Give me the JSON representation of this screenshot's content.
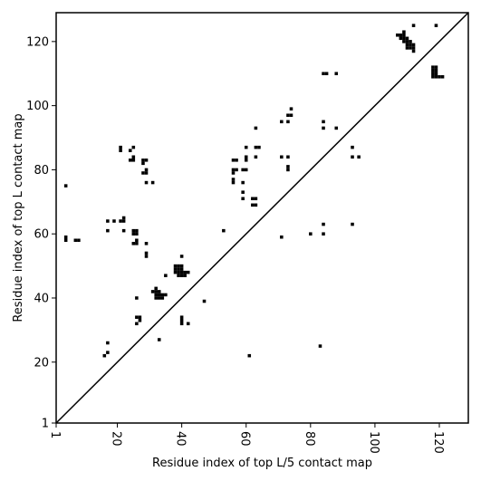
{
  "chart_data": {
    "type": "heatmap",
    "title": "",
    "xlabel": "Residue index of top L/5 contact map",
    "ylabel": "Residue index of top L contact map",
    "xlim": [
      1,
      129
    ],
    "ylim": [
      1,
      129
    ],
    "x_ticks": [
      1,
      20,
      40,
      60,
      80,
      100,
      120
    ],
    "y_ticks": [
      1,
      20,
      40,
      60,
      80,
      100,
      120
    ],
    "x_tick_rotation": -90,
    "diagonal": true,
    "colors": {
      "contact": "#000000",
      "background": "#ffffff",
      "frame": "#000000"
    },
    "upper_triangle_note": "L/5 contacts shown as filled cells",
    "points": [
      [
        4,
        75
      ],
      [
        4,
        58
      ],
      [
        4,
        59
      ],
      [
        7,
        58
      ],
      [
        8,
        58
      ],
      [
        16,
        22
      ],
      [
        17,
        23
      ],
      [
        17,
        26
      ],
      [
        17,
        61
      ],
      [
        17,
        64
      ],
      [
        19,
        64
      ],
      [
        21,
        64
      ],
      [
        21,
        86
      ],
      [
        21,
        87
      ],
      [
        22,
        61
      ],
      [
        22,
        64
      ],
      [
        22,
        65
      ],
      [
        24,
        83
      ],
      [
        24,
        86
      ],
      [
        25,
        83
      ],
      [
        25,
        84
      ],
      [
        25,
        87
      ],
      [
        25,
        57
      ],
      [
        25,
        60
      ],
      [
        25,
        61
      ],
      [
        26,
        57
      ],
      [
        26,
        58
      ],
      [
        26,
        60
      ],
      [
        26,
        61
      ],
      [
        26,
        40
      ],
      [
        26,
        32
      ],
      [
        26,
        34
      ],
      [
        27,
        33
      ],
      [
        27,
        34
      ],
      [
        28,
        79
      ],
      [
        28,
        82
      ],
      [
        28,
        83
      ],
      [
        29,
        79
      ],
      [
        29,
        80
      ],
      [
        29,
        83
      ],
      [
        29,
        76
      ],
      [
        29,
        57
      ],
      [
        29,
        53
      ],
      [
        29,
        54
      ],
      [
        31,
        76
      ],
      [
        31,
        42
      ],
      [
        32,
        41
      ],
      [
        32,
        42
      ],
      [
        32,
        43
      ],
      [
        32,
        40
      ],
      [
        33,
        40
      ],
      [
        33,
        41
      ],
      [
        33,
        42
      ],
      [
        33,
        27
      ],
      [
        34,
        40
      ],
      [
        34,
        41
      ],
      [
        35,
        41
      ],
      [
        35,
        47
      ],
      [
        38,
        48
      ],
      [
        38,
        49
      ],
      [
        38,
        50
      ],
      [
        39,
        47
      ],
      [
        39,
        48
      ],
      [
        39,
        49
      ],
      [
        39,
        50
      ],
      [
        40,
        47
      ],
      [
        40,
        48
      ],
      [
        40,
        49
      ],
      [
        40,
        50
      ],
      [
        40,
        53
      ],
      [
        40,
        32
      ],
      [
        40,
        33
      ],
      [
        40,
        34
      ],
      [
        41,
        47
      ],
      [
        41,
        48
      ],
      [
        42,
        48
      ],
      [
        42,
        32
      ],
      [
        47,
        39
      ],
      [
        53,
        61
      ],
      [
        56,
        76
      ],
      [
        56,
        77
      ],
      [
        56,
        79
      ],
      [
        56,
        80
      ],
      [
        56,
        83
      ],
      [
        57,
        80
      ],
      [
        57,
        83
      ],
      [
        59,
        73
      ],
      [
        59,
        71
      ],
      [
        59,
        76
      ],
      [
        59,
        80
      ],
      [
        60,
        80
      ],
      [
        60,
        83
      ],
      [
        60,
        84
      ],
      [
        60,
        87
      ],
      [
        61,
        22
      ],
      [
        62,
        69
      ],
      [
        62,
        71
      ],
      [
        63,
        69
      ],
      [
        63,
        71
      ],
      [
        63,
        84
      ],
      [
        63,
        87
      ],
      [
        63,
        93
      ],
      [
        64,
        87
      ],
      [
        71,
        95
      ],
      [
        71,
        84
      ],
      [
        71,
        59
      ],
      [
        73,
        97
      ],
      [
        73,
        95
      ],
      [
        73,
        84
      ],
      [
        73,
        80
      ],
      [
        73,
        81
      ],
      [
        74,
        97
      ],
      [
        74,
        99
      ],
      [
        80,
        60
      ],
      [
        83,
        25
      ],
      [
        84,
        110
      ],
      [
        84,
        95
      ],
      [
        84,
        93
      ],
      [
        84,
        63
      ],
      [
        84,
        60
      ],
      [
        85,
        110
      ],
      [
        88,
        110
      ],
      [
        88,
        93
      ],
      [
        93,
        87
      ],
      [
        93,
        84
      ],
      [
        93,
        63
      ],
      [
        95,
        84
      ],
      [
        107,
        122
      ],
      [
        108,
        121
      ],
      [
        108,
        122
      ],
      [
        109,
        120
      ],
      [
        109,
        121
      ],
      [
        109,
        122
      ],
      [
        109,
        123
      ],
      [
        110,
        118
      ],
      [
        110,
        119
      ],
      [
        110,
        120
      ],
      [
        110,
        121
      ],
      [
        111,
        118
      ],
      [
        111,
        119
      ],
      [
        111,
        120
      ],
      [
        112,
        117
      ],
      [
        112,
        118
      ],
      [
        112,
        119
      ],
      [
        112,
        125
      ],
      [
        118,
        109
      ],
      [
        118,
        110
      ],
      [
        118,
        111
      ],
      [
        118,
        112
      ],
      [
        119,
        109
      ],
      [
        119,
        110
      ],
      [
        119,
        111
      ],
      [
        119,
        112
      ],
      [
        119,
        125
      ],
      [
        120,
        109
      ],
      [
        121,
        109
      ]
    ]
  }
}
